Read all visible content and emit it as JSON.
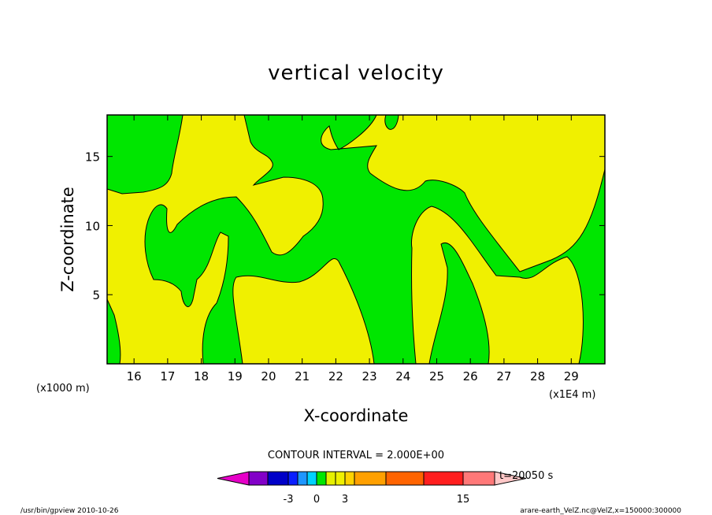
{
  "chart_data": {
    "type": "heatmap",
    "title": "vertical velocity",
    "xlabel": "X-coordinate",
    "ylabel": "Z-coordinate",
    "xlim": [
      152000,
      300000
    ],
    "ylim": [
      0,
      18000
    ],
    "x_ticks": [
      16,
      17,
      18,
      19,
      20,
      21,
      22,
      23,
      24,
      25,
      26,
      27,
      28,
      29
    ],
    "y_ticks": [
      5,
      10,
      15
    ],
    "x_unit": "(x1E4 m)",
    "y_unit": "(x1000 m)",
    "contour_interval": "CONTOUR INTERVAL = 2.000E+00",
    "levels": [
      -9,
      -7,
      -5,
      -3,
      -2,
      -1,
      0,
      1,
      2,
      3,
      5,
      7,
      9,
      11,
      13,
      15
    ],
    "colorbar_labels": [
      "-3",
      "0",
      "3",
      "15"
    ],
    "colorbar_colors": [
      "#e600c8",
      "#8200c8",
      "#0000c8",
      "#0a1eff",
      "#1e96ff",
      "#00d2ff",
      "#00e600",
      "#e6f000",
      "#f0f000",
      "#ffd200",
      "#ffa000",
      "#ff6400",
      "#ff1e1e",
      "#ff7878",
      "#ffc8c8"
    ],
    "regions": [
      {
        "sign": "positive",
        "color": "#f0f000",
        "label": "0 to 2"
      },
      {
        "sign": "negative",
        "color": "#00e600",
        "label": "-2 to 0"
      }
    ],
    "time_label": "t=20050 s"
  },
  "footer": {
    "left": "/usr/bin/gpview   2010-10-26",
    "right": "arare-earth_VelZ.nc@VelZ,x=150000:300000"
  }
}
